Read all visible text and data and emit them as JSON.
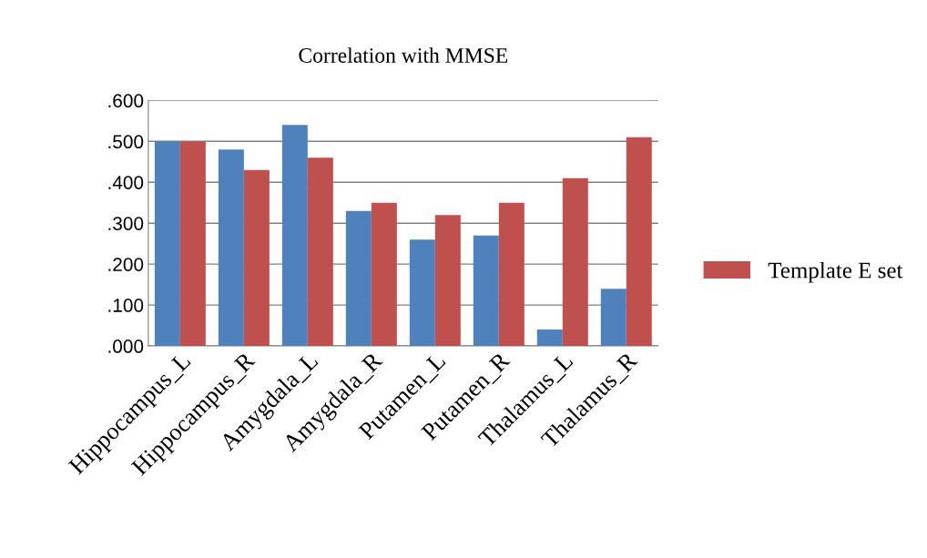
{
  "chart_data": {
    "type": "bar",
    "title": "Correlation with MMSE",
    "categories": [
      "Hippocampus_L",
      "Hippocampus_R",
      "Amygdala_L",
      "Amygdala_R",
      "Putamen_L",
      "Putamen_R",
      "Thalamus_L",
      "Thalamus_R"
    ],
    "series": [
      {
        "color": "#4f81bd",
        "values": [
          0.5,
          0.48,
          0.54,
          0.33,
          0.26,
          0.27,
          0.04,
          0.14
        ]
      },
      {
        "name": "Template E set",
        "color": "#c0504d",
        "values": [
          0.5,
          0.43,
          0.46,
          0.35,
          0.32,
          0.35,
          0.41,
          0.51
        ]
      }
    ],
    "ylim": [
      0,
      0.6
    ],
    "yticks": [
      {
        "value": 0,
        "label": ".000"
      },
      {
        "value": 0.1,
        "label": ".100"
      },
      {
        "value": 0.2,
        "label": ".200"
      },
      {
        "value": 0.3,
        "label": ".300"
      },
      {
        "value": 0.4,
        "label": ".400"
      },
      {
        "value": 0.5,
        "label": ".500"
      },
      {
        "value": 0.6,
        "label": ".600"
      }
    ],
    "grid": "y",
    "legend": "right"
  }
}
